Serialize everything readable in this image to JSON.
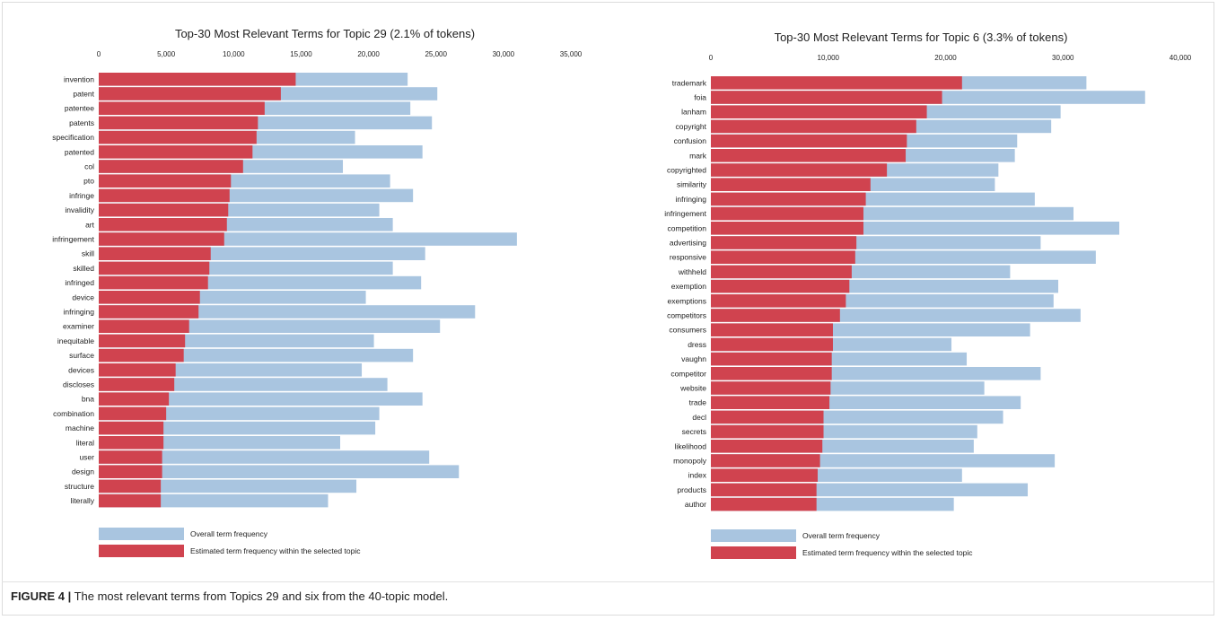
{
  "figure": {
    "label": "FIGURE 4 |",
    "text": "The most relevant terms from Topics 29 and six from the 40-topic model."
  },
  "chart_data": [
    {
      "type": "bar",
      "orientation": "horizontal",
      "stacked": false,
      "title": "Top-30 Most Relevant Terms for Topic 29 (2.1% of tokens)",
      "xlabel": "",
      "ylabel": "",
      "xlim": [
        0,
        35000
      ],
      "xticks": [
        0,
        5000,
        10000,
        15000,
        20000,
        25000,
        30000,
        35000
      ],
      "xtick_labels": [
        "0",
        "5,000",
        "10,000",
        "15,000",
        "20,000",
        "25,000",
        "30,000",
        "35,000"
      ],
      "tick_position": "top",
      "grid": false,
      "legend_position": "bottom-left",
      "categories": [
        "invention",
        "patent",
        "patentee",
        "patents",
        "specification",
        "patented",
        "col",
        "pto",
        "infringe",
        "invalidity",
        "art",
        "infringement",
        "skill",
        "skilled",
        "infringed",
        "device",
        "infringing",
        "examiner",
        "inequitable",
        "surface",
        "devices",
        "discloses",
        "bna",
        "combination",
        "machine",
        "literal",
        "user",
        "design",
        "structure",
        "literally"
      ],
      "series": [
        {
          "name": "Overall term frequency",
          "color": "#a9c5e0",
          "values": [
            22900,
            25100,
            23100,
            24700,
            19000,
            24000,
            18100,
            21600,
            23300,
            20800,
            21800,
            31000,
            24200,
            21800,
            23900,
            19800,
            27900,
            25300,
            20400,
            23300,
            19500,
            21400,
            24000,
            20800,
            20500,
            17900,
            24500,
            26700,
            19100,
            17000
          ]
        },
        {
          "name": "Estimated term frequency within the selected topic",
          "color": "#d0434f",
          "values": [
            14600,
            13500,
            12300,
            11800,
            11700,
            11400,
            10700,
            9800,
            9700,
            9600,
            9500,
            9300,
            8300,
            8200,
            8100,
            7500,
            7400,
            6700,
            6400,
            6300,
            5700,
            5600,
            5200,
            5000,
            4800,
            4800,
            4700,
            4700,
            4600,
            4600
          ]
        }
      ]
    },
    {
      "type": "bar",
      "orientation": "horizontal",
      "stacked": false,
      "title": "Top-30 Most Relevant Terms for Topic 6 (3.3% of tokens)",
      "xlabel": "",
      "ylabel": "",
      "xlim": [
        0,
        40000
      ],
      "xticks": [
        0,
        10000,
        20000,
        30000,
        40000
      ],
      "xtick_labels": [
        "0",
        "10,000",
        "20,000",
        "30,000",
        "40,000"
      ],
      "tick_position": "top",
      "grid": false,
      "legend_position": "bottom-left",
      "categories": [
        "trademark",
        "foia",
        "lanham",
        "copyright",
        "confusion",
        "mark",
        "copyrighted",
        "similarity",
        "infringing",
        "infringement",
        "competition",
        "advertising",
        "responsive",
        "withheld",
        "exemption",
        "exemptions",
        "competitors",
        "consumers",
        "dress",
        "vaughn",
        "competitor",
        "website",
        "trade",
        "decl",
        "secrets",
        "likelihood",
        "monopoly",
        "index",
        "products",
        "author"
      ],
      "series": [
        {
          "name": "Overall term frequency",
          "color": "#a9c5e0",
          "values": [
            32000,
            37000,
            29800,
            29000,
            26100,
            25900,
            24500,
            24200,
            27600,
            30900,
            34800,
            28100,
            32800,
            25500,
            29600,
            29200,
            31500,
            27200,
            20500,
            21800,
            28100,
            23300,
            26400,
            24900,
            22700,
            22400,
            29300,
            21400,
            27000,
            20700
          ]
        },
        {
          "name": "Estimated term frequency within the selected topic",
          "color": "#d0434f",
          "values": [
            21400,
            19700,
            18400,
            17500,
            16700,
            16600,
            15000,
            13600,
            13200,
            13000,
            13000,
            12400,
            12300,
            12000,
            11800,
            11500,
            11000,
            10400,
            10400,
            10300,
            10300,
            10200,
            10100,
            9600,
            9600,
            9500,
            9300,
            9100,
            9000,
            9000
          ]
        }
      ]
    }
  ]
}
